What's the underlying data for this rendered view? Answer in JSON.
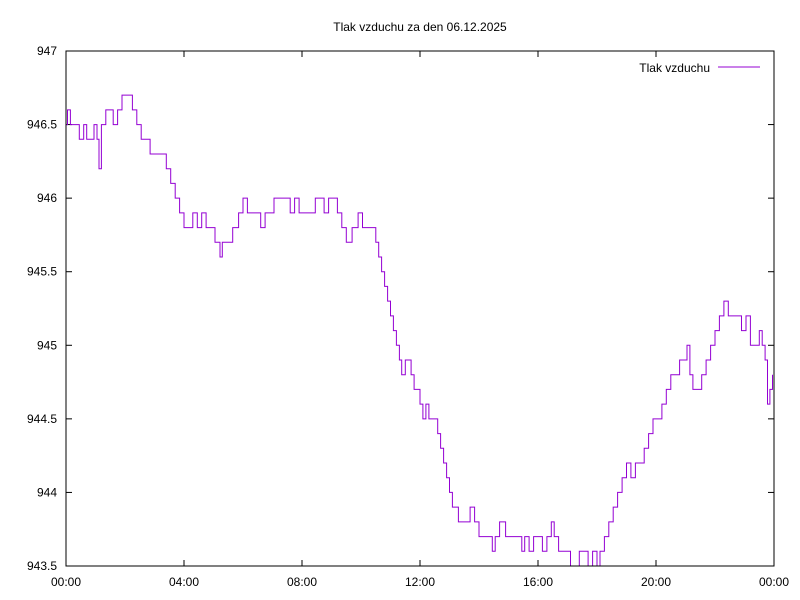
{
  "chart_data": {
    "type": "line",
    "title": "Tlak vzduchu za den 06.12.2025",
    "xlabel": "",
    "ylabel": "",
    "xlim": [
      0,
      24
    ],
    "ylim": [
      943.5,
      947
    ],
    "grid": false,
    "legend_position": "top-right",
    "x_ticks": [
      {
        "value": 0,
        "label": "00:00"
      },
      {
        "value": 4,
        "label": "04:00"
      },
      {
        "value": 8,
        "label": "08:00"
      },
      {
        "value": 12,
        "label": "12:00"
      },
      {
        "value": 16,
        "label": "16:00"
      },
      {
        "value": 20,
        "label": "20:00"
      },
      {
        "value": 24,
        "label": "00:00"
      }
    ],
    "y_ticks": [
      {
        "value": 943.5,
        "label": "943.5"
      },
      {
        "value": 944,
        "label": "944"
      },
      {
        "value": 944.5,
        "label": "944.5"
      },
      {
        "value": 945,
        "label": "945"
      },
      {
        "value": 945.5,
        "label": "945.5"
      },
      {
        "value": 946,
        "label": "946"
      },
      {
        "value": 946.5,
        "label": "946.5"
      },
      {
        "value": 947,
        "label": "947"
      }
    ],
    "series": [
      {
        "name": "Tlak vzduchu",
        "color": "#9400d3",
        "points": [
          [
            0.0,
            946.5
          ],
          [
            0.05,
            946.6
          ],
          [
            0.15,
            946.5
          ],
          [
            0.3,
            946.5
          ],
          [
            0.45,
            946.4
          ],
          [
            0.6,
            946.5
          ],
          [
            0.7,
            946.4
          ],
          [
            0.85,
            946.4
          ],
          [
            0.95,
            946.5
          ],
          [
            1.05,
            946.4
          ],
          [
            1.12,
            946.2
          ],
          [
            1.2,
            946.5
          ],
          [
            1.35,
            946.6
          ],
          [
            1.5,
            946.6
          ],
          [
            1.6,
            946.5
          ],
          [
            1.75,
            946.6
          ],
          [
            1.9,
            946.7
          ],
          [
            2.1,
            946.7
          ],
          [
            2.25,
            946.6
          ],
          [
            2.4,
            946.5
          ],
          [
            2.55,
            946.4
          ],
          [
            2.7,
            946.4
          ],
          [
            2.85,
            946.3
          ],
          [
            3.0,
            946.3
          ],
          [
            3.2,
            946.3
          ],
          [
            3.4,
            946.2
          ],
          [
            3.55,
            946.1
          ],
          [
            3.7,
            946.0
          ],
          [
            3.85,
            945.9
          ],
          [
            4.0,
            945.8
          ],
          [
            4.15,
            945.8
          ],
          [
            4.3,
            945.9
          ],
          [
            4.45,
            945.8
          ],
          [
            4.6,
            945.9
          ],
          [
            4.75,
            945.8
          ],
          [
            4.9,
            945.8
          ],
          [
            5.05,
            945.7
          ],
          [
            5.15,
            945.7
          ],
          [
            5.22,
            945.6
          ],
          [
            5.3,
            945.7
          ],
          [
            5.5,
            945.7
          ],
          [
            5.65,
            945.8
          ],
          [
            5.85,
            945.9
          ],
          [
            6.0,
            946.0
          ],
          [
            6.15,
            945.9
          ],
          [
            6.35,
            945.9
          ],
          [
            6.5,
            945.9
          ],
          [
            6.6,
            945.8
          ],
          [
            6.75,
            945.9
          ],
          [
            6.9,
            945.9
          ],
          [
            7.05,
            946.0
          ],
          [
            7.2,
            946.0
          ],
          [
            7.35,
            946.0
          ],
          [
            7.5,
            946.0
          ],
          [
            7.6,
            945.9
          ],
          [
            7.75,
            946.0
          ],
          [
            7.9,
            945.9
          ],
          [
            8.1,
            945.9
          ],
          [
            8.3,
            945.9
          ],
          [
            8.45,
            946.0
          ],
          [
            8.6,
            946.0
          ],
          [
            8.75,
            945.9
          ],
          [
            8.9,
            946.0
          ],
          [
            9.05,
            946.0
          ],
          [
            9.2,
            945.9
          ],
          [
            9.35,
            945.8
          ],
          [
            9.5,
            945.7
          ],
          [
            9.7,
            945.8
          ],
          [
            9.9,
            945.9
          ],
          [
            10.05,
            945.8
          ],
          [
            10.2,
            945.8
          ],
          [
            10.35,
            945.8
          ],
          [
            10.5,
            945.7
          ],
          [
            10.6,
            945.6
          ],
          [
            10.7,
            945.5
          ],
          [
            10.8,
            945.4
          ],
          [
            10.9,
            945.3
          ],
          [
            11.0,
            945.2
          ],
          [
            11.1,
            945.1
          ],
          [
            11.2,
            945.0
          ],
          [
            11.3,
            944.9
          ],
          [
            11.38,
            944.8
          ],
          [
            11.5,
            944.9
          ],
          [
            11.6,
            944.9
          ],
          [
            11.7,
            944.8
          ],
          [
            11.8,
            944.7
          ],
          [
            11.9,
            944.7
          ],
          [
            12.0,
            944.6
          ],
          [
            12.1,
            944.5
          ],
          [
            12.2,
            944.6
          ],
          [
            12.3,
            944.5
          ],
          [
            12.45,
            944.5
          ],
          [
            12.6,
            944.4
          ],
          [
            12.7,
            944.3
          ],
          [
            12.8,
            944.2
          ],
          [
            12.9,
            944.1
          ],
          [
            13.0,
            944.0
          ],
          [
            13.1,
            943.9
          ],
          [
            13.2,
            943.9
          ],
          [
            13.3,
            943.8
          ],
          [
            13.4,
            943.8
          ],
          [
            13.55,
            943.8
          ],
          [
            13.7,
            943.9
          ],
          [
            13.85,
            943.8
          ],
          [
            14.0,
            943.7
          ],
          [
            14.15,
            943.7
          ],
          [
            14.3,
            943.7
          ],
          [
            14.45,
            943.6
          ],
          [
            14.55,
            943.7
          ],
          [
            14.7,
            943.8
          ],
          [
            14.9,
            943.7
          ],
          [
            15.1,
            943.7
          ],
          [
            15.3,
            943.7
          ],
          [
            15.45,
            943.6
          ],
          [
            15.55,
            943.7
          ],
          [
            15.7,
            943.6
          ],
          [
            15.85,
            943.7
          ],
          [
            16.0,
            943.7
          ],
          [
            16.15,
            943.6
          ],
          [
            16.3,
            943.7
          ],
          [
            16.45,
            943.8
          ],
          [
            16.55,
            943.7
          ],
          [
            16.7,
            943.6
          ],
          [
            16.85,
            943.6
          ],
          [
            17.0,
            943.6
          ],
          [
            17.1,
            943.5
          ],
          [
            17.25,
            943.5
          ],
          [
            17.4,
            943.6
          ],
          [
            17.55,
            943.6
          ],
          [
            17.7,
            943.5
          ],
          [
            17.85,
            943.6
          ],
          [
            18.0,
            943.5
          ],
          [
            18.1,
            943.6
          ],
          [
            18.25,
            943.7
          ],
          [
            18.4,
            943.8
          ],
          [
            18.55,
            943.9
          ],
          [
            18.7,
            944.0
          ],
          [
            18.85,
            944.1
          ],
          [
            19.0,
            944.2
          ],
          [
            19.15,
            944.1
          ],
          [
            19.3,
            944.2
          ],
          [
            19.45,
            944.2
          ],
          [
            19.6,
            944.3
          ],
          [
            19.75,
            944.4
          ],
          [
            19.9,
            944.5
          ],
          [
            20.05,
            944.5
          ],
          [
            20.2,
            944.6
          ],
          [
            20.35,
            944.7
          ],
          [
            20.5,
            944.8
          ],
          [
            20.65,
            944.8
          ],
          [
            20.8,
            944.9
          ],
          [
            20.95,
            944.9
          ],
          [
            21.05,
            945.0
          ],
          [
            21.15,
            944.8
          ],
          [
            21.25,
            944.7
          ],
          [
            21.4,
            944.7
          ],
          [
            21.55,
            944.8
          ],
          [
            21.7,
            944.9
          ],
          [
            21.85,
            945.0
          ],
          [
            22.0,
            945.1
          ],
          [
            22.15,
            945.2
          ],
          [
            22.3,
            945.3
          ],
          [
            22.45,
            945.2
          ],
          [
            22.6,
            945.2
          ],
          [
            22.75,
            945.2
          ],
          [
            22.9,
            945.1
          ],
          [
            23.05,
            945.2
          ],
          [
            23.2,
            945.0
          ],
          [
            23.35,
            945.0
          ],
          [
            23.5,
            945.1
          ],
          [
            23.6,
            945.0
          ],
          [
            23.7,
            944.9
          ],
          [
            23.78,
            944.6
          ],
          [
            23.86,
            944.7
          ],
          [
            23.95,
            944.8
          ]
        ]
      }
    ]
  }
}
